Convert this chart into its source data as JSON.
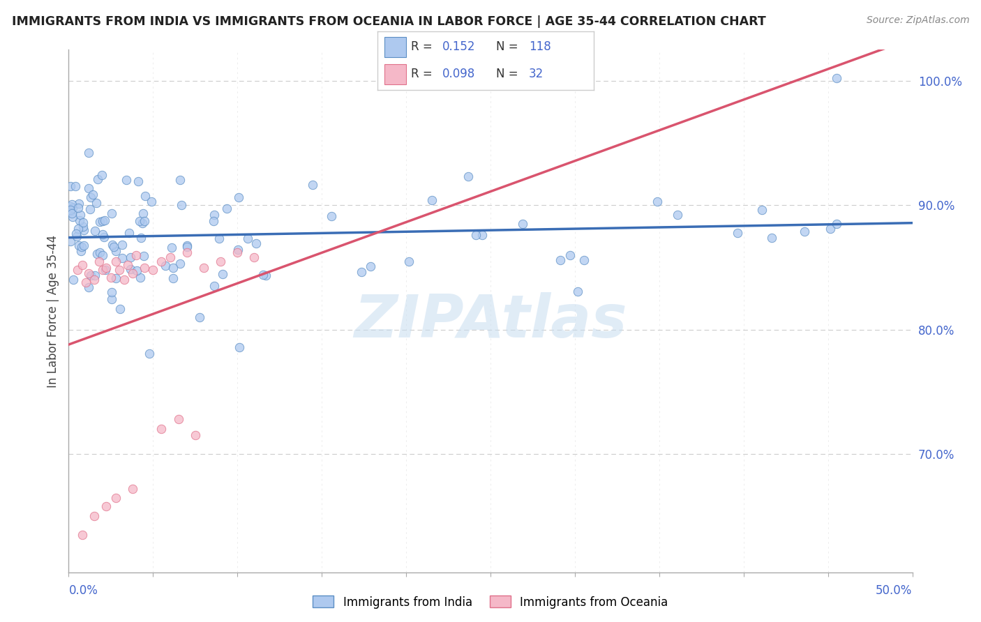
{
  "title": "IMMIGRANTS FROM INDIA VS IMMIGRANTS FROM OCEANIA IN LABOR FORCE | AGE 35-44 CORRELATION CHART",
  "source": "Source: ZipAtlas.com",
  "ylabel": "In Labor Force | Age 35-44",
  "ylabel_right_ticks": [
    "100.0%",
    "90.0%",
    "80.0%",
    "70.0%"
  ],
  "ylabel_right_vals": [
    1.0,
    0.9,
    0.8,
    0.7
  ],
  "xlim": [
    0.0,
    0.5
  ],
  "ylim": [
    0.605,
    1.025
  ],
  "india_R": 0.152,
  "india_N": 118,
  "oceania_R": 0.098,
  "oceania_N": 32,
  "india_color": "#aec9ef",
  "oceania_color": "#f5b8c8",
  "india_edge_color": "#5b8ec4",
  "oceania_edge_color": "#e0708a",
  "india_line_color": "#3a6db5",
  "oceania_line_color": "#d9546e",
  "legend_color": "#4466cc",
  "background_color": "#ffffff",
  "grid_color": "#cccccc",
  "watermark": "ZIPAtlas",
  "watermark_color": "#c8ddf0",
  "title_color": "#222222",
  "source_color": "#888888",
  "ylabel_color": "#444444"
}
